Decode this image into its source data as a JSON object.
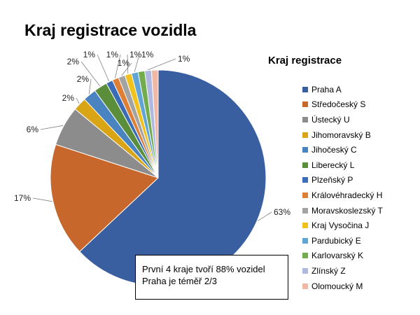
{
  "chart_data": {
    "type": "pie",
    "title": "Kraj registrace vozidla",
    "legend_title": "Kraj registrace",
    "legend_position": "right",
    "categories": [
      "Praha A",
      "Středočeský S",
      "Ústecký U",
      "Jihomoravský B",
      "Jihočeský C",
      "Liberecký L",
      "Plzeňský P",
      "Královéhradecký H",
      "Moravskoslezský T",
      "Kraj Vysočina J",
      "Pardubický E",
      "Karlovarský K",
      "Zlínský Z",
      "Olomoucký M"
    ],
    "values": [
      63,
      17,
      6,
      2,
      2,
      2,
      1,
      1,
      1,
      1,
      1,
      1,
      1,
      1
    ],
    "data_labels": [
      "63%",
      "17%",
      "6%",
      "2%",
      "2%",
      "2%",
      "1%",
      "1%",
      "1%",
      "1%",
      "1%",
      "1%",
      "1%",
      "1%"
    ],
    "colors": [
      "#3a5fa0",
      "#c8672b",
      "#8c8c8c",
      "#d9a514",
      "#4a84c0",
      "#5b8e3a",
      "#3a6cb8",
      "#df7f35",
      "#a3a3a3",
      "#f1c21b",
      "#60a5d6",
      "#72ac4c",
      "#aeb8e0",
      "#f0b9a6"
    ]
  },
  "annotation": {
    "line1": "První 4 kraje tvoří 88% vozidel",
    "line2": "Praha je téměř 2/3"
  }
}
